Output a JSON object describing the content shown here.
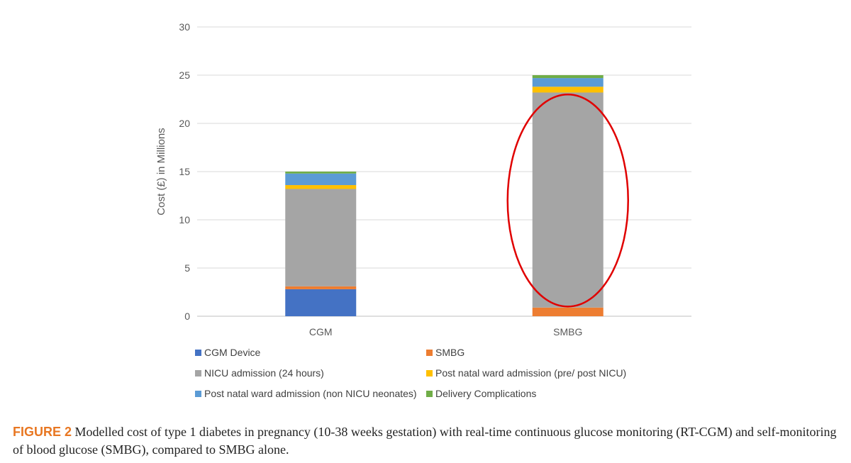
{
  "chart_data": {
    "type": "bar",
    "stacked": true,
    "categories": [
      "CGM",
      "SMBG"
    ],
    "series": [
      {
        "name": "CGM Device",
        "color": "#4472C4",
        "values": [
          2.8,
          0
        ]
      },
      {
        "name": "SMBG",
        "color": "#ED7D31",
        "values": [
          0.3,
          0.9
        ]
      },
      {
        "name": "NICU admission (24 hours)",
        "color": "#A5A5A5",
        "values": [
          10.1,
          22.3
        ]
      },
      {
        "name": "Post natal ward admission (pre/ post NICU)",
        "color": "#FFC000",
        "values": [
          0.4,
          0.6
        ]
      },
      {
        "name": "Post natal ward admission (non NICU neonates)",
        "color": "#5B9BD5",
        "values": [
          1.2,
          0.9
        ]
      },
      {
        "name": "Delivery Complications",
        "color": "#70AD47",
        "values": [
          0.2,
          0.3
        ]
      }
    ],
    "ylabel": "Cost (£) in Millions",
    "ylim": [
      0,
      30
    ],
    "yticks": [
      "0",
      "5",
      "10",
      "15",
      "20",
      "25",
      "30"
    ],
    "grid": true,
    "legend_position": "bottom",
    "annotation": {
      "shape": "ellipse",
      "color": "#E00000",
      "target": "SMBG",
      "range": [
        1,
        23
      ]
    }
  },
  "caption": {
    "label": "FIGURE 2",
    "text": "Modelled cost of type 1 diabetes in pregnancy (10-38 weeks gestation) with real-time continuous glucose monitoring (RT-CGM) and self-monitoring of blood glucose (SMBG), compared to SMBG alone."
  }
}
